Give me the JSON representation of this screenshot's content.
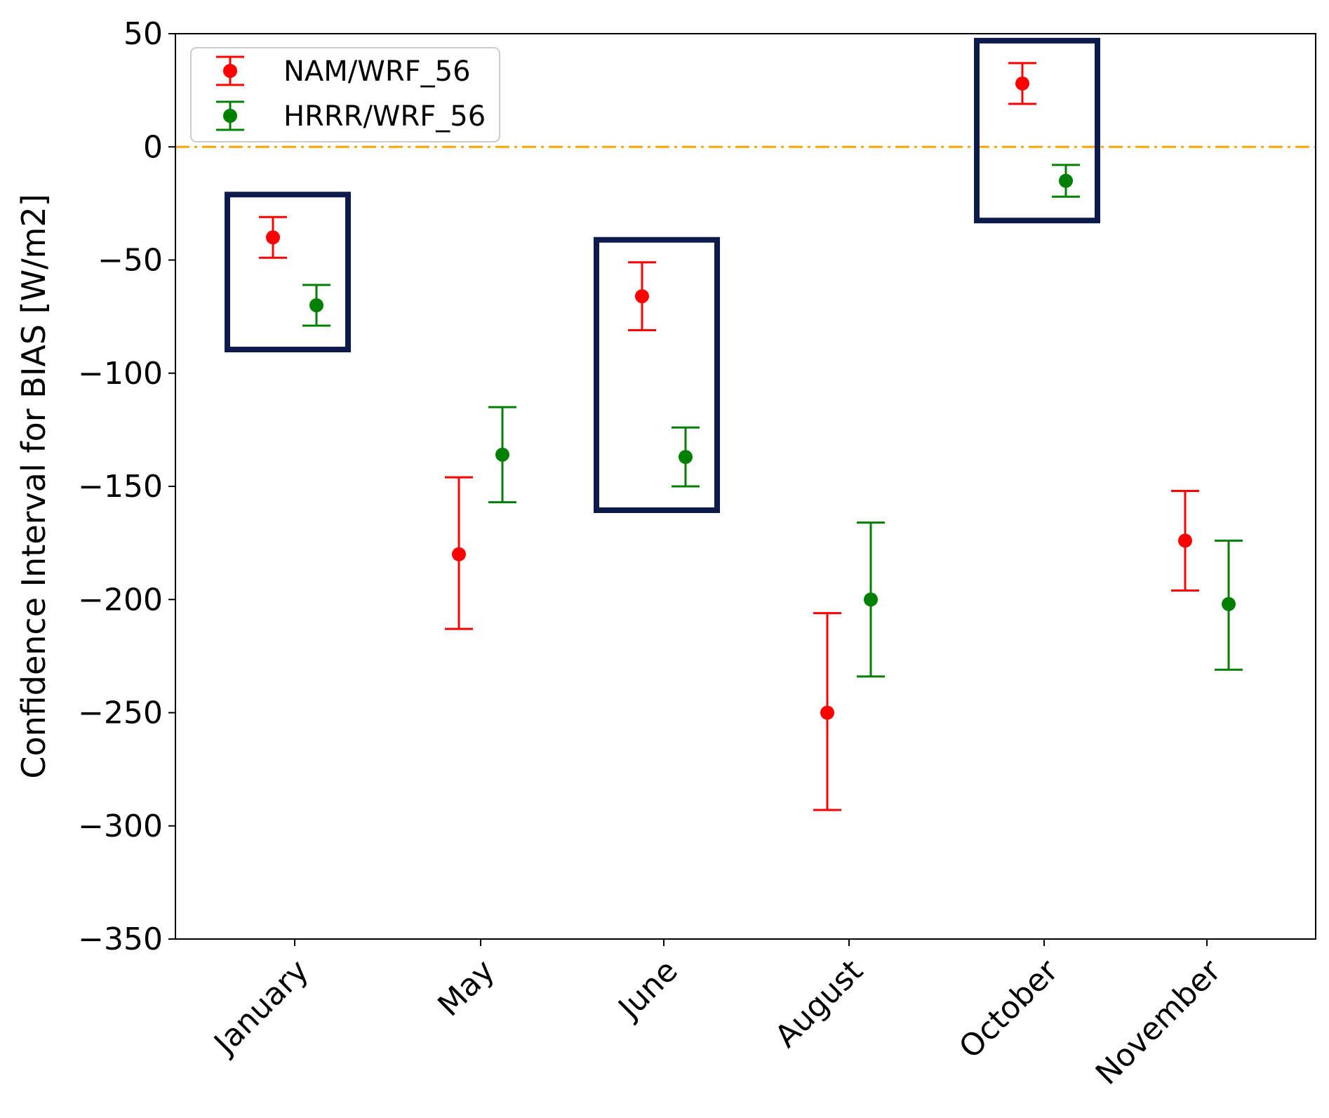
{
  "chart_data": {
    "type": "scatter",
    "subtype": "errorbar",
    "title": "",
    "xlabel": "",
    "ylabel": "Confidence Interval for BIAS [W/m2]",
    "ylim": [
      -350,
      50
    ],
    "yticks": [
      50,
      0,
      -50,
      -100,
      -150,
      -200,
      -250,
      -300,
      -350
    ],
    "ytick_labels": [
      "50",
      "0",
      "−50",
      "−100",
      "−150",
      "−200",
      "−250",
      "−300",
      "−350"
    ],
    "categories": [
      "January",
      "May",
      "June",
      "August",
      "October",
      "November"
    ],
    "reference_line": {
      "y": 0,
      "color": "#FFA500",
      "style": "dash-dot"
    },
    "legend_position": "top-left",
    "series": [
      {
        "name": "NAM/WRF_56",
        "color": "#FF0000",
        "offset": "left",
        "points": [
          {
            "category": "January",
            "value": -40,
            "lower": -49,
            "upper": -31
          },
          {
            "category": "May",
            "value": -180,
            "lower": -213,
            "upper": -146
          },
          {
            "category": "June",
            "value": -66,
            "lower": -81,
            "upper": -51
          },
          {
            "category": "August",
            "value": -250,
            "lower": -293,
            "upper": -206
          },
          {
            "category": "October",
            "value": 28,
            "lower": 19,
            "upper": 37
          },
          {
            "category": "November",
            "value": -174,
            "lower": -196,
            "upper": -152
          }
        ]
      },
      {
        "name": "HRRR/WRF_56",
        "color": "#008000",
        "offset": "right",
        "points": [
          {
            "category": "January",
            "value": -70,
            "lower": -79,
            "upper": -61
          },
          {
            "category": "May",
            "value": -136,
            "lower": -157,
            "upper": -115
          },
          {
            "category": "June",
            "value": -137,
            "lower": -150,
            "upper": -124
          },
          {
            "category": "August",
            "value": -200,
            "lower": -234,
            "upper": -166
          },
          {
            "category": "October",
            "value": -15,
            "lower": -22,
            "upper": -8
          },
          {
            "category": "November",
            "value": -202,
            "lower": -231,
            "upper": -174
          }
        ]
      }
    ],
    "highlight_boxes": [
      {
        "categories": [
          "January"
        ],
        "color": "#0D1B4C"
      },
      {
        "categories": [
          "June"
        ],
        "color": "#0D1B4C"
      },
      {
        "categories": [
          "October"
        ],
        "color": "#0D1B4C"
      }
    ]
  }
}
